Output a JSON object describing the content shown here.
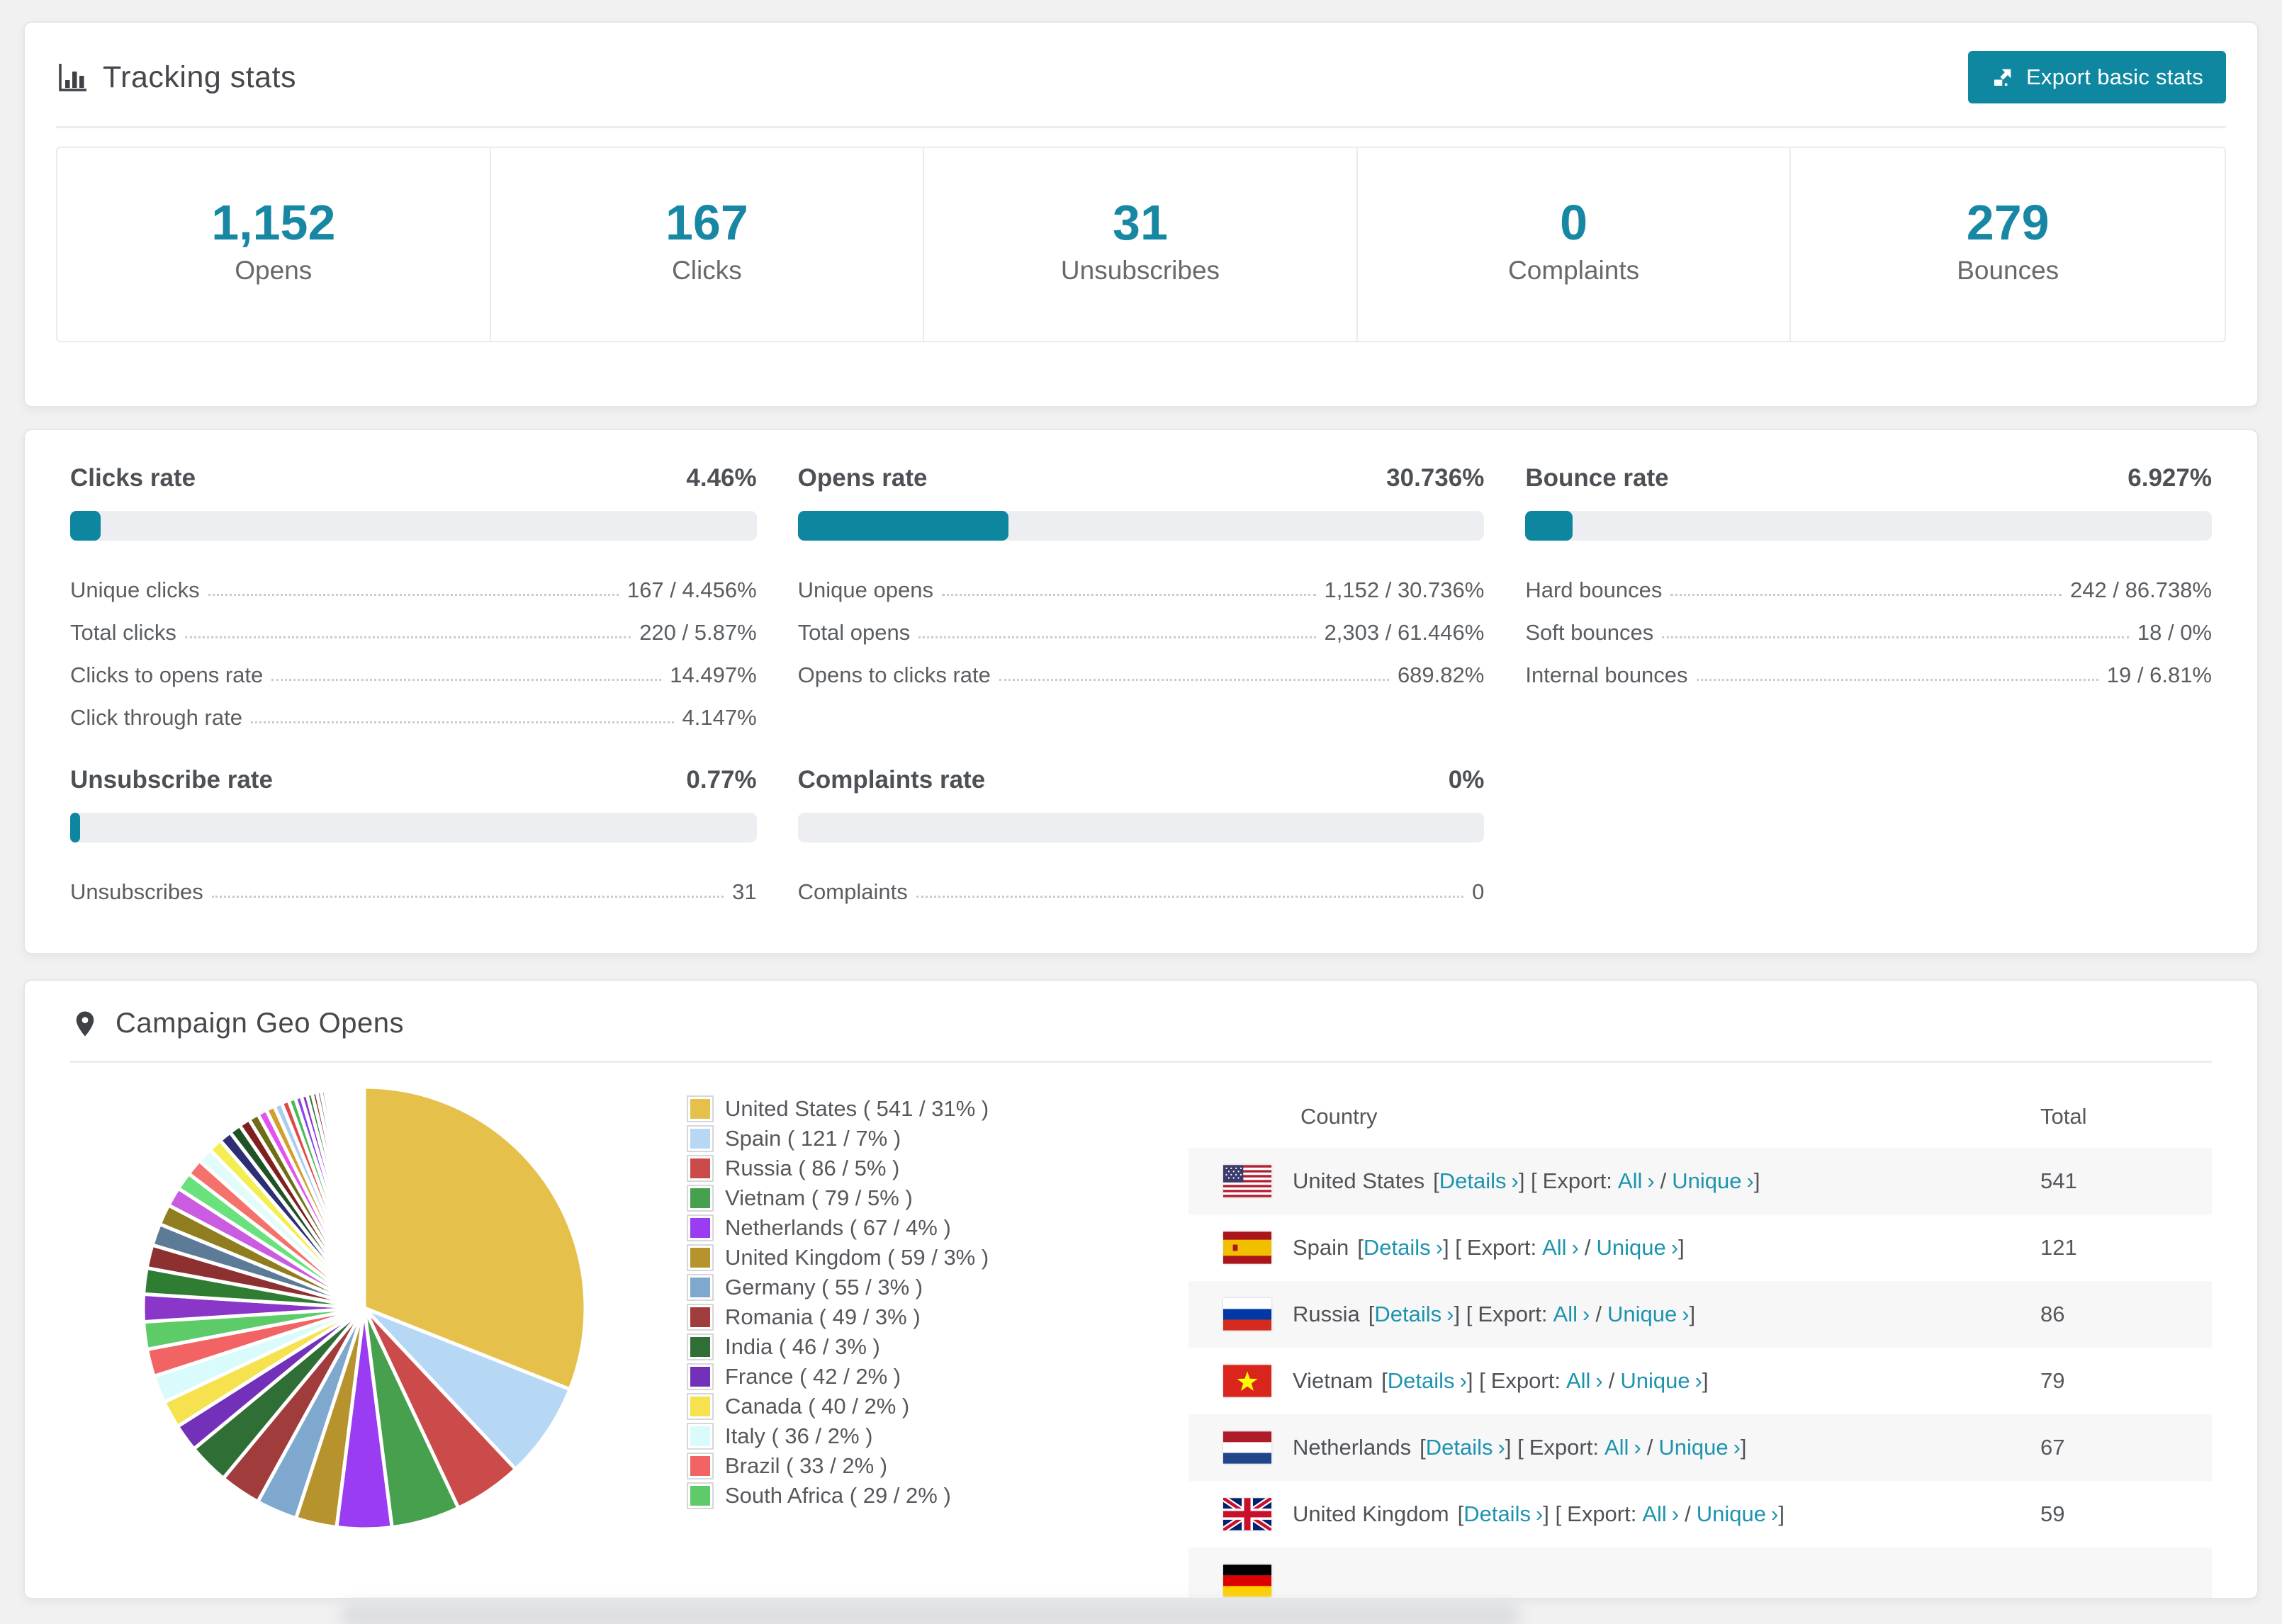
{
  "page": {
    "background": "#f1f1f2",
    "accent": "#0e86a0",
    "link_color": "#1e93ae"
  },
  "header": {
    "title": "Tracking stats",
    "export_button": "Export basic stats"
  },
  "summary": [
    {
      "value": "1,152",
      "label": "Opens"
    },
    {
      "value": "167",
      "label": "Clicks"
    },
    {
      "value": "31",
      "label": "Unsubscribes"
    },
    {
      "value": "0",
      "label": "Complaints"
    },
    {
      "value": "279",
      "label": "Bounces"
    }
  ],
  "rate_panels": [
    {
      "title": "Clicks rate",
      "value": "4.46%",
      "bar_percent": 4.46,
      "rows": [
        [
          "Unique clicks",
          "167 / 4.456%"
        ],
        [
          "Total clicks",
          "220 / 5.87%"
        ],
        [
          "Clicks to opens rate",
          "14.497%"
        ],
        [
          "Click through rate",
          "4.147%"
        ]
      ]
    },
    {
      "title": "Opens rate",
      "value": "30.736%",
      "bar_percent": 30.736,
      "rows": [
        [
          "Unique opens",
          "1,152 / 30.736%"
        ],
        [
          "Total opens",
          "2,303 / 61.446%"
        ],
        [
          "Opens to clicks rate",
          "689.82%"
        ]
      ]
    },
    {
      "title": "Bounce rate",
      "value": "6.927%",
      "bar_percent": 6.927,
      "rows": [
        [
          "Hard bounces",
          "242 / 86.738%"
        ],
        [
          "Soft bounces",
          "18 / 0%"
        ],
        [
          "Internal bounces",
          "19 / 6.81%"
        ]
      ]
    },
    {
      "title": "Unsubscribe rate",
      "value": "0.77%",
      "bar_percent": 0.77,
      "rows": [
        [
          "Unsubscribes",
          "31"
        ]
      ]
    },
    {
      "title": "Complaints rate",
      "value": "0%",
      "bar_percent": 0,
      "rows": [
        [
          "Complaints",
          "0"
        ]
      ]
    }
  ],
  "geo": {
    "title": "Campaign Geo Opens",
    "legend": [
      {
        "label": "United States ( 541 / 31% )",
        "color": "#e5c04a"
      },
      {
        "label": "Spain ( 121 / 7% )",
        "color": "#b7d8f4"
      },
      {
        "label": "Russia ( 86 / 5% )",
        "color": "#cb4a4a"
      },
      {
        "label": "Vietnam ( 79 / 5% )",
        "color": "#47a04d"
      },
      {
        "label": "Netherlands ( 67 / 4% )",
        "color": "#9a3df2"
      },
      {
        "label": "United Kingdom ( 59 / 3% )",
        "color": "#b6932c"
      },
      {
        "label": "Germany ( 55 / 3% )",
        "color": "#7fa8cf"
      },
      {
        "label": "Romania ( 49 / 3% )",
        "color": "#a03c3c"
      },
      {
        "label": "India ( 46 / 3% )",
        "color": "#2f6f36"
      },
      {
        "label": "France ( 42 / 2% )",
        "color": "#7330b8"
      },
      {
        "label": "Canada ( 40 / 2% )",
        "color": "#f6e14e"
      },
      {
        "label": "Italy ( 36 / 2% )",
        "color": "#d9fbfb"
      },
      {
        "label": "Brazil ( 33 / 2% )",
        "color": "#f26464"
      },
      {
        "label": "South Africa ( 29 / 2% )",
        "color": "#5ecb69"
      }
    ],
    "table": {
      "columns": [
        "Country",
        "Total"
      ],
      "chevron": "›",
      "punct": {
        "open": "[",
        "close": "]",
        "slash": "/"
      },
      "link_labels": {
        "details": "Details",
        "export": "Export:",
        "all": "All",
        "unique": "Unique"
      },
      "rows": [
        {
          "flag": "us",
          "country": "United States",
          "total": "541",
          "cut": false
        },
        {
          "flag": "es",
          "country": "Spain",
          "total": "121",
          "cut": false
        },
        {
          "flag": "ru",
          "country": "Russia",
          "total": "86",
          "cut": false
        },
        {
          "flag": "vn",
          "country": "Vietnam",
          "total": "79",
          "cut": false
        },
        {
          "flag": "nl",
          "country": "Netherlands",
          "total": "67",
          "cut": false
        },
        {
          "flag": "gb",
          "country": "United Kingdom",
          "total": "59",
          "cut": false
        },
        {
          "flag": "de",
          "country": "",
          "total": "",
          "cut": true
        }
      ]
    }
  },
  "chart_data": {
    "type": "pie",
    "title": "Campaign Geo Opens",
    "legend_position": "right",
    "start_angle_deg": -90,
    "direction": "clockwise",
    "series": [
      {
        "name": "United States",
        "value": 541,
        "percent": 31,
        "color": "#e5c04a"
      },
      {
        "name": "Spain",
        "value": 121,
        "percent": 7,
        "color": "#b7d8f4"
      },
      {
        "name": "Russia",
        "value": 86,
        "percent": 5,
        "color": "#cb4a4a"
      },
      {
        "name": "Vietnam",
        "value": 79,
        "percent": 5,
        "color": "#47a04d"
      },
      {
        "name": "Netherlands",
        "value": 67,
        "percent": 4,
        "color": "#9a3df2"
      },
      {
        "name": "United Kingdom",
        "value": 59,
        "percent": 3,
        "color": "#b6932c"
      },
      {
        "name": "Germany",
        "value": 55,
        "percent": 3,
        "color": "#7fa8cf"
      },
      {
        "name": "Romania",
        "value": 49,
        "percent": 3,
        "color": "#a03c3c"
      },
      {
        "name": "India",
        "value": 46,
        "percent": 3,
        "color": "#2f6f36"
      },
      {
        "name": "France",
        "value": 42,
        "percent": 2,
        "color": "#7330b8"
      },
      {
        "name": "Canada",
        "value": 40,
        "percent": 2,
        "color": "#f6e14e"
      },
      {
        "name": "Italy",
        "value": 36,
        "percent": 2,
        "color": "#d9fbfb"
      },
      {
        "name": "Brazil",
        "value": 33,
        "percent": 2,
        "color": "#f26464"
      },
      {
        "name": "South Africa",
        "value": 29,
        "percent": 2,
        "color": "#5ecb69"
      }
    ],
    "others_tail": {
      "percents": [
        2.0,
        1.9,
        1.7,
        1.6,
        1.5,
        1.4,
        1.3,
        1.2,
        1.1,
        1.0,
        0.92,
        0.85,
        0.8,
        0.74,
        0.68,
        0.63,
        0.58,
        0.54,
        0.5,
        0.46,
        0.42,
        0.38,
        0.35,
        0.32,
        0.29,
        0.26,
        0.24,
        0.22,
        0.2,
        0.18,
        0.16,
        0.14,
        0.12,
        0.11,
        0.1,
        0.09,
        0.08,
        0.07,
        0.06,
        0.05,
        0.05,
        0.04,
        0.04,
        0.03,
        0.03
      ],
      "palette": [
        "#8a36c9",
        "#2e7d32",
        "#8d3030",
        "#5d7b97",
        "#8f7d20",
        "#c95ce0",
        "#69e27d",
        "#f4726b",
        "#e2fbfb",
        "#f3ee52",
        "#2e2e74",
        "#1f5226",
        "#801f1f",
        "#6e6e16",
        "#e055ee",
        "#d0a02e",
        "#a9cdf0",
        "#e04848",
        "#46bb56",
        "#8844ee"
      ]
    }
  }
}
